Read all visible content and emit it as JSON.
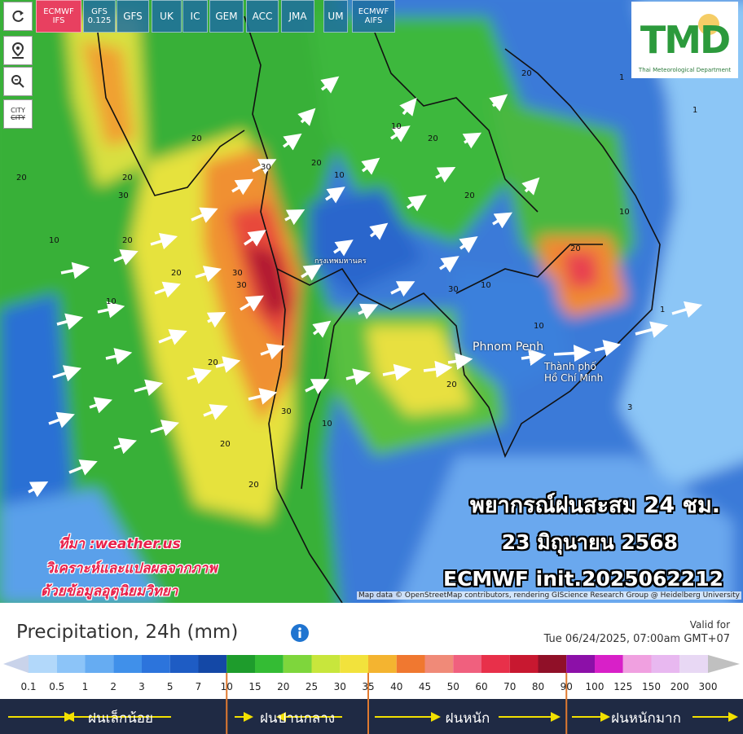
{
  "toolbar": {
    "models": [
      {
        "lines": [
          "ECMWF",
          "IFS"
        ],
        "active": true
      },
      {
        "lines": [
          "GFS",
          "0.125"
        ]
      },
      {
        "lines": [
          "GFS"
        ]
      },
      {
        "lines": [
          "UK"
        ]
      },
      {
        "lines": [
          "IC"
        ]
      },
      {
        "lines": [
          "GEM"
        ]
      },
      {
        "lines": [
          "ACC"
        ]
      },
      {
        "lines": [
          "JMA"
        ]
      },
      {
        "lines": [
          "UM"
        ]
      },
      {
        "lines": [
          "ECMWF",
          "AIFS"
        ]
      }
    ],
    "city_tool": [
      "CITY",
      "CITY"
    ]
  },
  "logo": {
    "title": "TMD",
    "subtitle": "Thai Meteorological Department"
  },
  "map": {
    "headline": [
      "พยากรณ์ฝนสะสม 24 ชม.",
      "23 มิถุนายน 2568",
      "ECMWF init.2025062212"
    ],
    "credit": [
      "ที่มา :weather.us",
      "วิเคราะห์และแปลผลจากภาพ",
      "ด้วยข้อมูลอุตุนิยมวิทยา"
    ],
    "cities": [
      "Phnom Penh",
      "Thành phố",
      "Hồ Chí Minh",
      "กรุงเทพมหานคร"
    ],
    "contour_labels": [
      "20",
      "20",
      "30",
      "20",
      "20",
      "30",
      "20",
      "10",
      "20",
      "10",
      "30",
      "30",
      "30",
      "20",
      "20",
      "20",
      "20",
      "10",
      "10",
      "20",
      "10",
      "10",
      "20",
      "10",
      "1",
      "1",
      "1",
      "20",
      "30",
      "3",
      "10",
      "20"
    ],
    "attribution": "Map data © OpenStreetMap contributors, rendering GIScience Research Group @ Heidelberg University"
  },
  "legend": {
    "title": "Precipitation, 24h (mm)",
    "valid_label": "Valid for",
    "valid_time": "Tue 06/24/2025, 07:00am GMT+07",
    "ticks": [
      "0.1",
      "0.5",
      "1",
      "2",
      "3",
      "5",
      "7",
      "10",
      "15",
      "20",
      "25",
      "30",
      "35",
      "40",
      "45",
      "50",
      "60",
      "70",
      "80",
      "90",
      "100",
      "125",
      "150",
      "200",
      "300"
    ],
    "colors": [
      "#c9d3ea",
      "#b2d8fa",
      "#8cc4f8",
      "#66acf2",
      "#4090ea",
      "#2c74dc",
      "#1e5cc4",
      "#1448a6",
      "#1e9c2c",
      "#34bc34",
      "#7ed63c",
      "#c8e63c",
      "#f2e23c",
      "#f4b430",
      "#f07830",
      "#f08a78",
      "#f0607e",
      "#e8304a",
      "#c81830",
      "#901028",
      "#8c10a8",
      "#d820c8",
      "#f0a0e0",
      "#e8b8f0",
      "#e8d8f4",
      "#c0c0c0"
    ],
    "categories": [
      "ฝนเล็กน้อย",
      "ฝนปานกลาง",
      "ฝนหนัก",
      "ฝนหนักมาก"
    ]
  }
}
